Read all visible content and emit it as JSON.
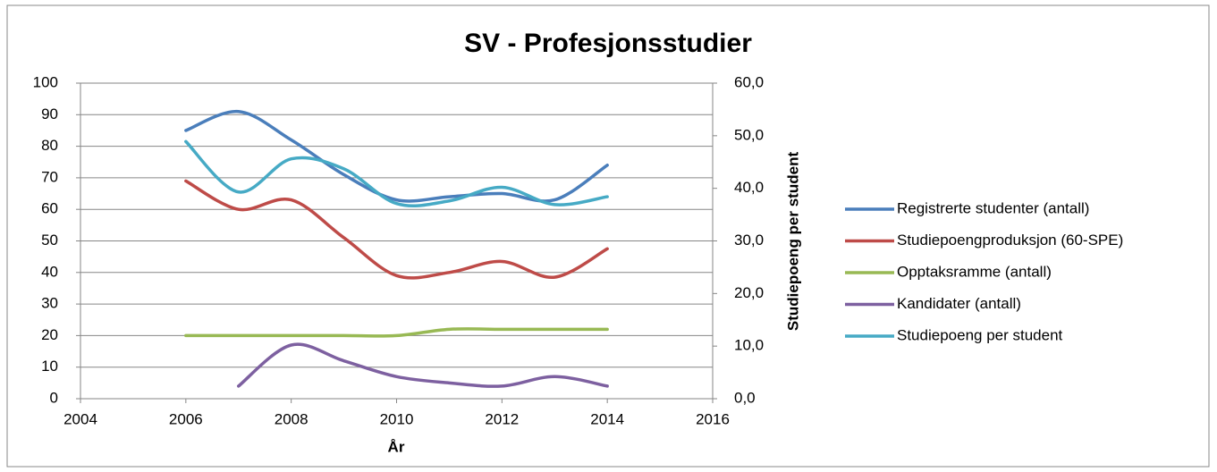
{
  "chart_data": {
    "type": "line",
    "title": "SV - Profesjonsstudier",
    "xlabel": "År",
    "y2label": "Studiepoeng per student",
    "x": [
      2006,
      2007,
      2008,
      2009,
      2010,
      2011,
      2012,
      2013,
      2014
    ],
    "xlim": [
      2004,
      2016
    ],
    "xticks": [
      2004,
      2006,
      2008,
      2010,
      2012,
      2014,
      2016
    ],
    "ylim": [
      0,
      100
    ],
    "yticks": [
      0,
      10,
      20,
      30,
      40,
      50,
      60,
      70,
      80,
      90,
      100
    ],
    "y2lim": [
      0,
      60
    ],
    "y2ticks": [
      {
        "value": 0,
        "label": "0,0"
      },
      {
        "value": 10,
        "label": "10,0"
      },
      {
        "value": 20,
        "label": "20,0"
      },
      {
        "value": 30,
        "label": "30,0"
      },
      {
        "value": 40,
        "label": "40,0"
      },
      {
        "value": 50,
        "label": "50,0"
      },
      {
        "value": 60,
        "label": "60,0"
      }
    ],
    "grid": true,
    "smooth": true,
    "legend": "right",
    "series": [
      {
        "name": "Registrerte studenter (antall)",
        "color": "#4a7ebb",
        "values": [
          85,
          91,
          82,
          71,
          63,
          64,
          65,
          63,
          74
        ]
      },
      {
        "name": "Studiepoengproduksjon (60-SPE)",
        "color": "#be4b48",
        "values": [
          69,
          60,
          63,
          51,
          39,
          40,
          43.5,
          38.5,
          47.5
        ]
      },
      {
        "name": "Opptaksramme (antall)",
        "color": "#98b954",
        "values": [
          20,
          20,
          20,
          20,
          20,
          22,
          22,
          22,
          22
        ]
      },
      {
        "name": "Kandidater (antall)",
        "color": "#7d60a0",
        "values": [
          null,
          4,
          17,
          12,
          7,
          5,
          4,
          7,
          4
        ]
      },
      {
        "name": "Studiepoeng per student",
        "color": "#46aac5",
        "axis": "y2",
        "values": [
          48.9,
          39.3,
          45.6,
          43.7,
          37.1,
          37.6,
          40.2,
          36.9,
          38.4
        ]
      }
    ]
  }
}
